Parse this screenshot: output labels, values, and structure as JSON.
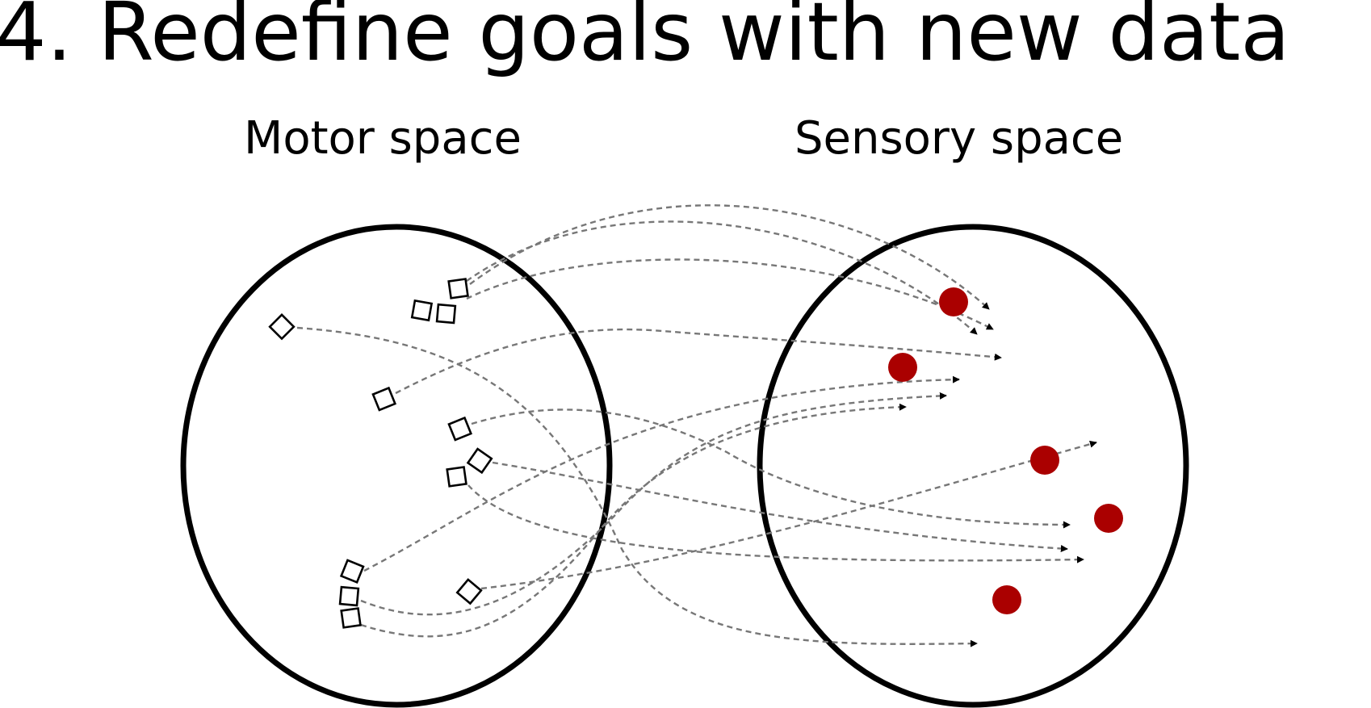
{
  "title": "4. Redefine goals with new data",
  "motor_space": {
    "label": "Motor space"
  },
  "sensory_space": {
    "label": "Sensory space"
  },
  "colors": {
    "goal": "#aa0000",
    "arrow": "#777777",
    "outline": "#000000"
  },
  "legend_semantics": {
    "motor_markers": "square-icon",
    "goal_markers": "red-dot-icon"
  }
}
